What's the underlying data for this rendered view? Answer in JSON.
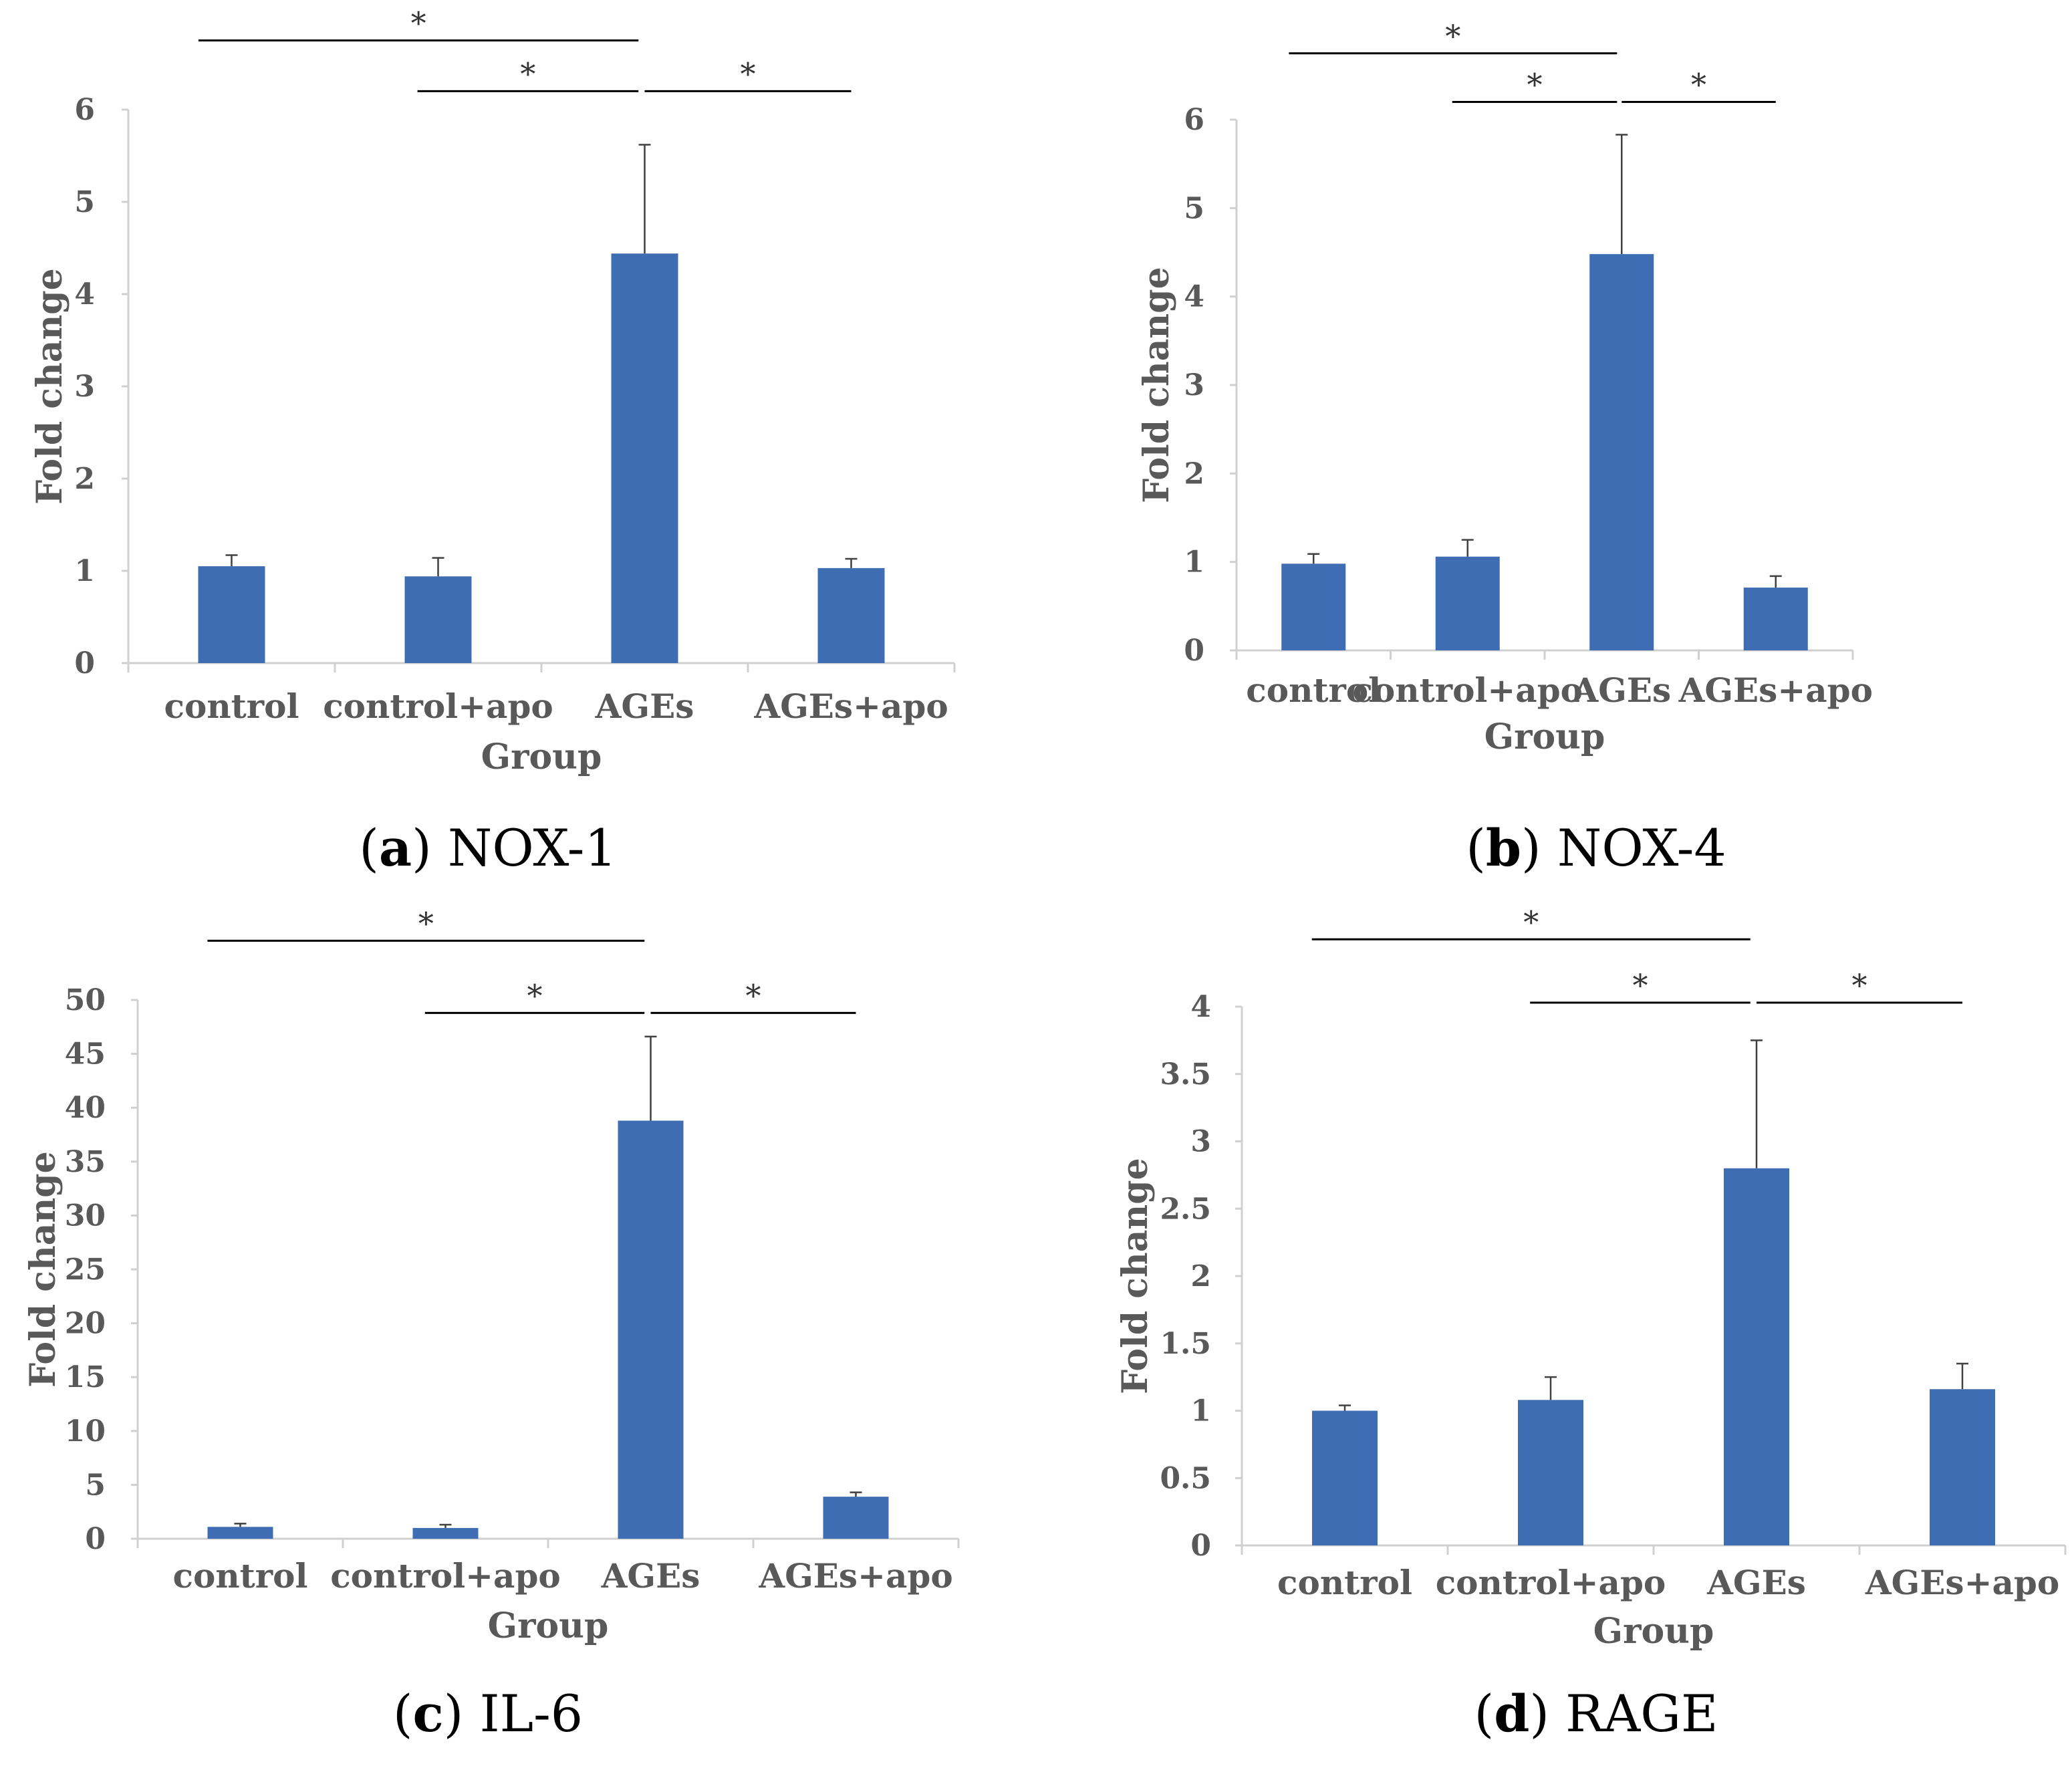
{
  "colors": {
    "bar": "#3f6db4",
    "axis": "#d0d0d0",
    "text": "#595959",
    "line": "#000000"
  },
  "chart_data": [
    {
      "type": "bar",
      "caption": {
        "letter": "a",
        "name": "NOX-1"
      },
      "xlabel": "Group",
      "ylabel": "Fold change",
      "categories": [
        "control",
        "control+apo",
        "AGEs",
        "AGEs+apo"
      ],
      "values": [
        1.05,
        0.94,
        4.44,
        1.03
      ],
      "errors": [
        0.12,
        0.2,
        1.18,
        0.1
      ],
      "ylim": [
        0,
        6
      ],
      "yticks": [
        "0",
        "1",
        "2",
        "3",
        "4",
        "5",
        "6"
      ],
      "significance": [
        {
          "from": 0,
          "to": 2,
          "y": 6.75,
          "label": "*"
        },
        {
          "from": 1,
          "to": 2,
          "y": 6.2,
          "label": "*"
        },
        {
          "from": 2,
          "to": 3,
          "y": 6.2,
          "label": "*"
        }
      ]
    },
    {
      "type": "bar",
      "caption": {
        "letter": "b",
        "name": "NOX-4"
      },
      "xlabel": "Group",
      "ylabel": "Fold change",
      "categories": [
        "control",
        "control+apo",
        "AGEs",
        "AGEs+apo"
      ],
      "values": [
        0.98,
        1.06,
        4.48,
        0.71
      ],
      "errors": [
        0.11,
        0.19,
        1.35,
        0.13
      ],
      "ylim": [
        0,
        6
      ],
      "yticks": [
        "0",
        "1",
        "2",
        "3",
        "4",
        "5",
        "6"
      ],
      "significance": [
        {
          "from": 0,
          "to": 2,
          "y": 6.75,
          "label": "*"
        },
        {
          "from": 1,
          "to": 2,
          "y": 6.2,
          "label": "*"
        },
        {
          "from": 2,
          "to": 3,
          "y": 6.2,
          "label": "*"
        }
      ]
    },
    {
      "type": "bar",
      "caption": {
        "letter": "c",
        "name": "IL-6"
      },
      "xlabel": "Group",
      "ylabel": "Fold change",
      "categories": [
        "control",
        "control+apo",
        "AGEs",
        "AGEs+apo"
      ],
      "values": [
        1.1,
        1.0,
        38.8,
        3.9
      ],
      "errors": [
        0.3,
        0.3,
        7.8,
        0.4
      ],
      "ylim": [
        0,
        50
      ],
      "yticks": [
        "0",
        "5",
        "10",
        "15",
        "20",
        "25",
        "30",
        "35",
        "40",
        "45",
        "50"
      ],
      "significance": [
        {
          "from": 0,
          "to": 2,
          "y": 55.5,
          "label": "*"
        },
        {
          "from": 1,
          "to": 2,
          "y": 48.8,
          "label": "*"
        },
        {
          "from": 2,
          "to": 3,
          "y": 48.8,
          "label": "*"
        }
      ]
    },
    {
      "type": "bar",
      "caption": {
        "letter": "d",
        "name": "RAGE"
      },
      "xlabel": "Group",
      "ylabel": "Fold change",
      "categories": [
        "control",
        "control+apo",
        "AGEs",
        "AGEs+apo"
      ],
      "values": [
        1.0,
        1.08,
        2.8,
        1.16
      ],
      "errors": [
        0.04,
        0.17,
        0.95,
        0.19
      ],
      "ylim": [
        0,
        4
      ],
      "yticks": [
        "0",
        "0.5",
        "1",
        "1.5",
        "2",
        "2.5",
        "3",
        "3.5",
        "4"
      ],
      "significance": [
        {
          "from": 0,
          "to": 2,
          "y": 4.5,
          "label": "*"
        },
        {
          "from": 1,
          "to": 2,
          "y": 4.03,
          "label": "*"
        },
        {
          "from": 2,
          "to": 3,
          "y": 4.03,
          "label": "*"
        }
      ]
    }
  ]
}
